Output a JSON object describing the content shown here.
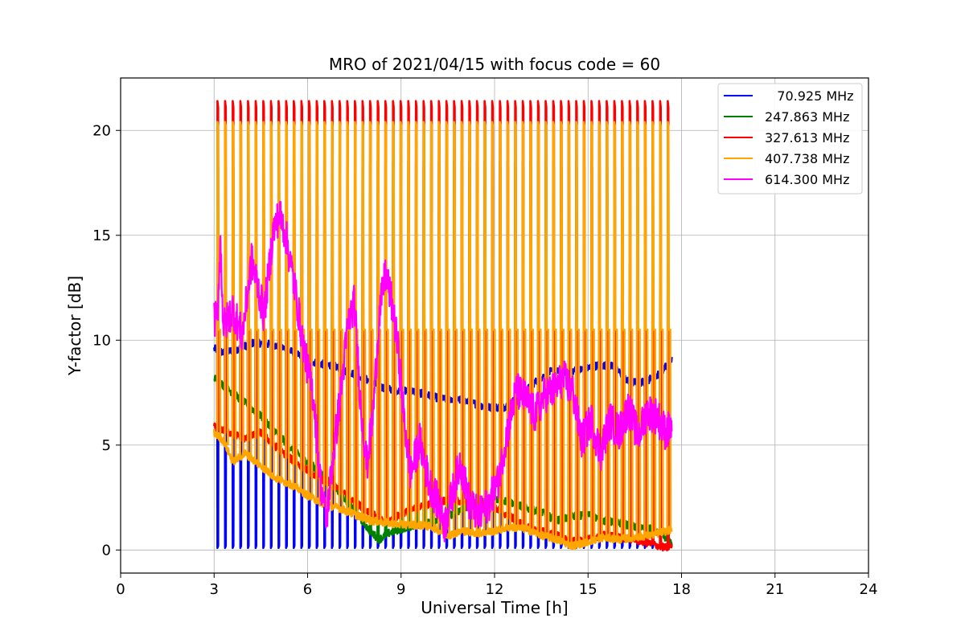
{
  "chart_data": {
    "type": "line",
    "title": "MRO of 2021/04/15 with focus code = 60",
    "xlabel": "Universal Time [h]",
    "ylabel": "Y-factor [dB]",
    "xlim": [
      0,
      24
    ],
    "ylim": [
      -1.1,
      22.5
    ],
    "xticks": [
      0,
      3,
      6,
      9,
      12,
      15,
      18,
      21,
      24
    ],
    "yticks": [
      0,
      5,
      10,
      15,
      20
    ],
    "grid": true,
    "legend_position": "upper right",
    "calibration_spikes": {
      "t_start": 3.1,
      "t_end": 17.55,
      "count": 60
    },
    "series": [
      {
        "name": "   70.925 MHz",
        "color": "#0000ff",
        "spike_low": 0.1,
        "spike_ripple": 0.1,
        "baseline": [
          [
            3.0,
            9.6
          ],
          [
            3.3,
            9.4
          ],
          [
            3.8,
            9.6
          ],
          [
            4.3,
            9.9
          ],
          [
            4.8,
            9.8
          ],
          [
            5.3,
            9.6
          ],
          [
            5.8,
            9.2
          ],
          [
            6.3,
            8.9
          ],
          [
            6.8,
            8.8
          ],
          [
            7.3,
            8.5
          ],
          [
            7.8,
            8.2
          ],
          [
            8.3,
            7.8
          ],
          [
            8.8,
            7.6
          ],
          [
            9.3,
            7.6
          ],
          [
            9.8,
            7.4
          ],
          [
            10.3,
            7.2
          ],
          [
            10.8,
            7.2
          ],
          [
            11.3,
            7.0
          ],
          [
            11.8,
            6.8
          ],
          [
            12.3,
            6.8
          ],
          [
            12.8,
            7.3
          ],
          [
            13.3,
            8.0
          ],
          [
            13.8,
            8.5
          ],
          [
            14.3,
            8.5
          ],
          [
            14.8,
            8.6
          ],
          [
            15.3,
            8.8
          ],
          [
            15.8,
            8.8
          ],
          [
            16.3,
            8.0
          ],
          [
            16.8,
            8.0
          ],
          [
            17.3,
            8.4
          ],
          [
            17.7,
            9.1
          ]
        ]
      },
      {
        "name": "247.863 MHz",
        "color": "#008000",
        "spike_top": 18.5,
        "baseline": [
          [
            3.0,
            8.2
          ],
          [
            3.5,
            7.6
          ],
          [
            4.0,
            7.0
          ],
          [
            4.5,
            6.4
          ],
          [
            5.0,
            5.6
          ],
          [
            5.5,
            4.8
          ],
          [
            6.0,
            4.2
          ],
          [
            6.5,
            3.6
          ],
          [
            7.0,
            2.8
          ],
          [
            7.5,
            1.9
          ],
          [
            8.0,
            0.9
          ],
          [
            8.3,
            0.5
          ],
          [
            8.6,
            0.8
          ],
          [
            9.0,
            1.0
          ],
          [
            9.5,
            1.2
          ],
          [
            10.0,
            1.3
          ],
          [
            10.5,
            1.6
          ],
          [
            11.0,
            2.0
          ],
          [
            11.5,
            2.3
          ],
          [
            12.0,
            2.4
          ],
          [
            12.5,
            2.3
          ],
          [
            13.0,
            2.0
          ],
          [
            13.5,
            1.8
          ],
          [
            14.0,
            1.4
          ],
          [
            14.5,
            1.6
          ],
          [
            15.0,
            1.7
          ],
          [
            15.5,
            1.4
          ],
          [
            16.0,
            1.3
          ],
          [
            16.5,
            1.1
          ],
          [
            17.0,
            1.0
          ],
          [
            17.5,
            0.6
          ],
          [
            17.7,
            0.2
          ]
        ]
      },
      {
        "name": "327.613 MHz",
        "color": "#ff0000",
        "spike_top": 21.4,
        "baseline": [
          [
            3.0,
            5.9
          ],
          [
            3.5,
            5.6
          ],
          [
            4.0,
            5.3
          ],
          [
            4.5,
            5.6
          ],
          [
            5.0,
            4.9
          ],
          [
            5.5,
            4.3
          ],
          [
            6.0,
            3.8
          ],
          [
            6.5,
            3.3
          ],
          [
            7.0,
            2.9
          ],
          [
            7.5,
            2.3
          ],
          [
            8.0,
            1.8
          ],
          [
            8.5,
            1.3
          ],
          [
            9.0,
            1.7
          ],
          [
            9.5,
            2.0
          ],
          [
            10.0,
            2.2
          ],
          [
            10.5,
            2.4
          ],
          [
            11.0,
            2.3
          ],
          [
            11.5,
            2.2
          ],
          [
            12.0,
            2.0
          ],
          [
            12.5,
            1.6
          ],
          [
            13.0,
            1.1
          ],
          [
            13.5,
            0.9
          ],
          [
            14.0,
            0.7
          ],
          [
            14.5,
            0.4
          ],
          [
            15.0,
            0.5
          ],
          [
            15.5,
            0.7
          ],
          [
            16.0,
            0.6
          ],
          [
            16.5,
            0.5
          ],
          [
            17.0,
            0.3
          ],
          [
            17.5,
            0.1
          ],
          [
            17.7,
            0.2
          ]
        ]
      },
      {
        "name": "407.738 MHz",
        "color": "#ffa500",
        "spike_top": 20.4,
        "spike_mid": 10.5,
        "baseline": [
          [
            3.0,
            5.6
          ],
          [
            3.3,
            5.2
          ],
          [
            3.6,
            4.2
          ],
          [
            4.0,
            4.6
          ],
          [
            4.5,
            4.0
          ],
          [
            5.0,
            3.4
          ],
          [
            5.5,
            3.1
          ],
          [
            6.0,
            2.6
          ],
          [
            6.5,
            2.2
          ],
          [
            7.0,
            2.0
          ],
          [
            7.5,
            1.7
          ],
          [
            8.0,
            1.4
          ],
          [
            8.5,
            1.3
          ],
          [
            9.0,
            1.2
          ],
          [
            9.5,
            1.2
          ],
          [
            10.0,
            1.1
          ],
          [
            10.5,
            0.7
          ],
          [
            11.0,
            0.9
          ],
          [
            11.5,
            0.8
          ],
          [
            12.0,
            0.9
          ],
          [
            12.5,
            1.1
          ],
          [
            13.0,
            1.0
          ],
          [
            13.5,
            0.7
          ],
          [
            14.0,
            0.5
          ],
          [
            14.5,
            0.2
          ],
          [
            15.0,
            0.4
          ],
          [
            15.5,
            0.6
          ],
          [
            16.0,
            0.5
          ],
          [
            16.5,
            0.6
          ],
          [
            17.0,
            0.7
          ],
          [
            17.5,
            0.9
          ],
          [
            17.7,
            1.0
          ]
        ]
      },
      {
        "name": "614.300 MHz",
        "color": "#ff00ff",
        "noise": 0.9,
        "baseline": [
          [
            3.1,
            11.0
          ],
          [
            3.2,
            14.8
          ],
          [
            3.3,
            10.6
          ],
          [
            3.6,
            11.5
          ],
          [
            3.9,
            10.2
          ],
          [
            4.2,
            13.8
          ],
          [
            4.4,
            12.6
          ],
          [
            4.6,
            11.2
          ],
          [
            4.9,
            15.2
          ],
          [
            5.1,
            16.0
          ],
          [
            5.3,
            15.0
          ],
          [
            5.6,
            12.4
          ],
          [
            5.9,
            9.4
          ],
          [
            6.2,
            7.2
          ],
          [
            6.4,
            3.4
          ],
          [
            6.6,
            1.4
          ],
          [
            6.8,
            4.2
          ],
          [
            7.1,
            8.0
          ],
          [
            7.3,
            10.8
          ],
          [
            7.5,
            11.8
          ],
          [
            7.7,
            7.0
          ],
          [
            7.9,
            4.0
          ],
          [
            8.1,
            6.5
          ],
          [
            8.3,
            11.2
          ],
          [
            8.5,
            13.2
          ],
          [
            8.7,
            11.8
          ],
          [
            8.9,
            9.6
          ],
          [
            9.1,
            6.2
          ],
          [
            9.3,
            3.6
          ],
          [
            9.6,
            5.2
          ],
          [
            9.9,
            3.2
          ],
          [
            10.2,
            2.2
          ],
          [
            10.4,
            1.2
          ],
          [
            10.6,
            2.4
          ],
          [
            10.9,
            4.2
          ],
          [
            11.2,
            2.2
          ],
          [
            11.5,
            1.6
          ],
          [
            11.8,
            2.2
          ],
          [
            12.1,
            3.2
          ],
          [
            12.4,
            5.6
          ],
          [
            12.7,
            7.6
          ],
          [
            13.0,
            7.2
          ],
          [
            13.3,
            6.4
          ],
          [
            13.6,
            7.4
          ],
          [
            13.9,
            7.6
          ],
          [
            14.2,
            8.2
          ],
          [
            14.5,
            7.6
          ],
          [
            14.8,
            5.2
          ],
          [
            15.1,
            6.2
          ],
          [
            15.4,
            4.6
          ],
          [
            15.7,
            6.2
          ],
          [
            16.0,
            5.6
          ],
          [
            16.3,
            6.8
          ],
          [
            16.6,
            5.4
          ],
          [
            16.9,
            6.6
          ],
          [
            17.2,
            6.4
          ],
          [
            17.5,
            5.6
          ],
          [
            17.7,
            5.9
          ]
        ]
      }
    ]
  }
}
